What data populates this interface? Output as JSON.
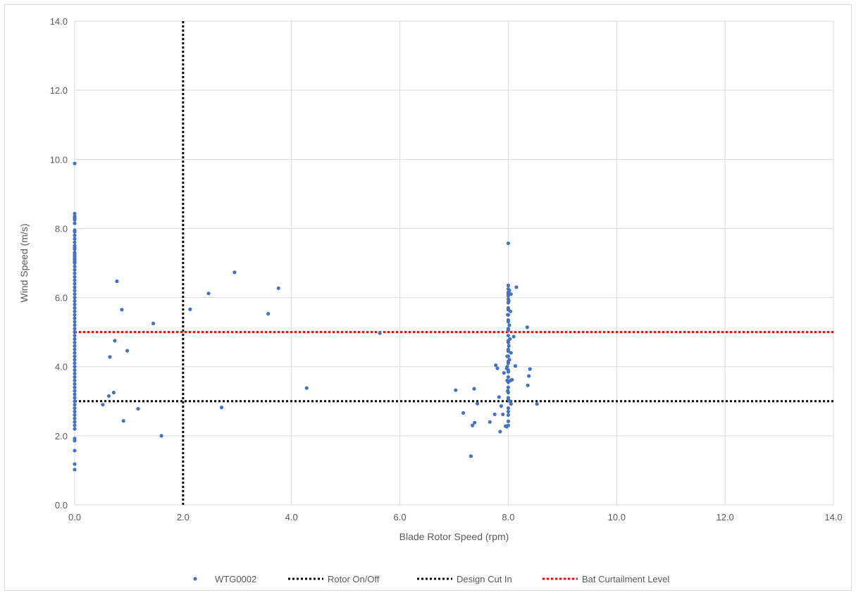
{
  "chart_data": {
    "type": "scatter",
    "title": "",
    "xlabel": "Blade Rotor Speed (rpm)",
    "ylabel": "Wind Speed (m/s)",
    "xlim": [
      0,
      14
    ],
    "ylim": [
      0,
      14
    ],
    "x_ticks": [
      0,
      2,
      4,
      6,
      8,
      10,
      12,
      14
    ],
    "y_ticks": [
      0,
      2,
      4,
      6,
      8,
      10,
      12,
      14
    ],
    "x_tick_labels": [
      "0.0",
      "2.0",
      "4.0",
      "6.0",
      "8.0",
      "10.0",
      "12.0",
      "14.0"
    ],
    "y_tick_labels": [
      "0.0",
      "2.0",
      "4.0",
      "6.0",
      "8.0",
      "10.0",
      "12.0",
      "14.0"
    ],
    "grid": true,
    "legend_position": "bottom",
    "series": [
      {
        "name": "WTG0002",
        "type": "scatter",
        "color": "#4472c4",
        "x": [
          0,
          0,
          0,
          0,
          0,
          0,
          0,
          0,
          0,
          0,
          0,
          0,
          0,
          0,
          0,
          0,
          0,
          0,
          0,
          0,
          0,
          0,
          0,
          0,
          0,
          0,
          0,
          0,
          0,
          0,
          0,
          0,
          0,
          0,
          0,
          0,
          0,
          0,
          0,
          0,
          0,
          0,
          0,
          0,
          0,
          0,
          0,
          0,
          0,
          0,
          0,
          0,
          0,
          0,
          0,
          0,
          0,
          0,
          0,
          0,
          0,
          0,
          0,
          0,
          0,
          0,
          0,
          0,
          0,
          0,
          0,
          0,
          0,
          0,
          0.52,
          0.63,
          0.65,
          0.72,
          0.74,
          0.78,
          0.87,
          0.9,
          0.97,
          1.17,
          1.45,
          1.6,
          2.13,
          2.47,
          2.71,
          2.95,
          3.57,
          3.76,
          4.28,
          5.63,
          7.03,
          7.17,
          7.31,
          7.34,
          7.37,
          7.38,
          7.43,
          7.66,
          7.75,
          7.77,
          7.8,
          7.83,
          7.85,
          7.87,
          7.9,
          7.92,
          7.95,
          7.97,
          7.97,
          7.98,
          7.98,
          7.98,
          7.99,
          7.99,
          8.0,
          8.0,
          8.0,
          8.0,
          8.0,
          8.0,
          8.0,
          8.0,
          8.0,
          8.0,
          8.0,
          8.0,
          8.0,
          8.0,
          8.0,
          8.0,
          8.0,
          8.0,
          8.0,
          8.0,
          8.0,
          8.0,
          8.0,
          8.0,
          8.0,
          8.0,
          8.0,
          8.0,
          8.0,
          8.0,
          8.0,
          8.0,
          8.0,
          8.0,
          8.0,
          8.0,
          8.01,
          8.01,
          8.02,
          8.02,
          8.02,
          8.03,
          8.03,
          8.04,
          8.04,
          8.05,
          8.05,
          8.05,
          8.07,
          8.1,
          8.13,
          8.15,
          8.35,
          8.36,
          8.38,
          8.4,
          8.53
        ],
        "y": [
          1.02,
          1.18,
          1.57,
          1.86,
          1.92,
          2.2,
          2.3,
          2.4,
          2.5,
          2.6,
          2.7,
          2.8,
          2.9,
          3.0,
          3.1,
          3.2,
          3.3,
          3.4,
          3.5,
          3.6,
          3.7,
          3.8,
          3.9,
          4.0,
          4.1,
          4.2,
          4.3,
          4.4,
          4.5,
          4.6,
          4.7,
          4.8,
          4.9,
          5.0,
          5.1,
          5.2,
          5.3,
          5.4,
          5.5,
          5.6,
          5.7,
          5.8,
          5.9,
          6.0,
          6.1,
          6.2,
          6.3,
          6.4,
          6.5,
          6.6,
          6.7,
          6.8,
          6.9,
          7.0,
          7.05,
          7.1,
          7.15,
          7.2,
          7.25,
          7.3,
          7.4,
          7.45,
          7.5,
          7.6,
          7.7,
          7.8,
          7.9,
          7.95,
          8.15,
          8.25,
          8.3,
          8.35,
          8.43,
          9.88,
          2.9,
          3.15,
          4.28,
          3.25,
          4.75,
          6.47,
          5.65,
          2.43,
          4.46,
          2.78,
          5.25,
          2.0,
          5.66,
          6.12,
          2.82,
          6.73,
          5.53,
          6.27,
          3.38,
          4.97,
          3.32,
          2.66,
          1.41,
          2.3,
          3.36,
          2.38,
          2.93,
          2.4,
          2.62,
          4.04,
          3.95,
          3.12,
          2.12,
          2.86,
          2.62,
          3.82,
          2.28,
          3.95,
          2.26,
          3.6,
          4.0,
          4.3,
          3.3,
          5.5,
          2.42,
          2.6,
          2.8,
          3.1,
          3.4,
          3.7,
          3.9,
          4.1,
          4.3,
          4.5,
          4.7,
          4.9,
          5.1,
          5.3,
          5.5,
          5.7,
          5.85,
          5.95,
          6.05,
          6.15,
          6.25,
          6.35,
          7.57,
          2.3,
          2.7,
          3.05,
          3.25,
          3.55,
          3.85,
          4.15,
          4.45,
          4.75,
          5.05,
          5.35,
          5.65,
          6.1,
          4.6,
          5.9,
          4.2,
          5.2,
          6.2,
          3.0,
          4.8,
          3.6,
          5.6,
          2.92,
          4.4,
          6.1,
          3.62,
          4.87,
          4.02,
          6.3,
          5.14,
          3.46,
          3.73,
          3.93,
          2.92
        ]
      },
      {
        "name": "Rotor On/Off",
        "type": "vline",
        "color": "#000000",
        "x": 2.0
      },
      {
        "name": "Design Cut In",
        "type": "hline",
        "color": "#000000",
        "y": 3.0
      },
      {
        "name": "Bat Curtailment Level",
        "type": "hline",
        "color": "#ff0000",
        "y": 5.0
      }
    ]
  }
}
